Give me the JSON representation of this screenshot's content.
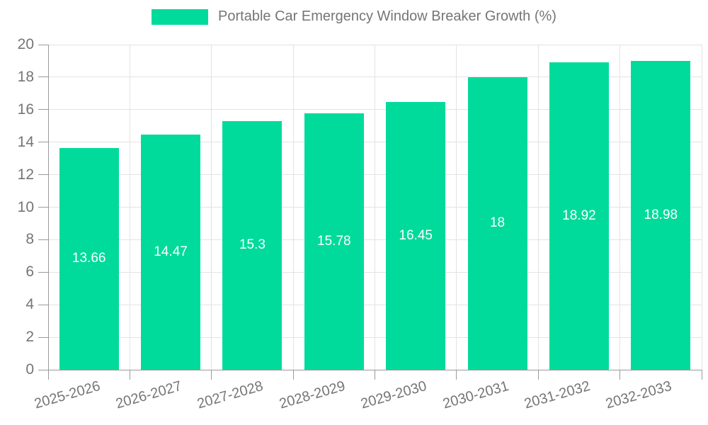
{
  "legend": {
    "label": "Portable Car Emergency Window Breaker Growth (%)"
  },
  "colors": {
    "bar": "#00DB9B",
    "grid": "#E3E3E3",
    "axis": "#9B9B9B",
    "text": "#757575",
    "value_label": "#FFFFFF",
    "background": "#FFFFFF"
  },
  "chart_data": {
    "type": "bar",
    "title": "Portable Car Emergency Window Breaker Growth (%)",
    "categories": [
      "2025-2026",
      "2026-2027",
      "2027-2028",
      "2028-2029",
      "2029-2030",
      "2030-2031",
      "2031-2032",
      "2032-2033"
    ],
    "values": [
      13.66,
      14.47,
      15.3,
      15.78,
      16.45,
      18,
      18.92,
      18.98
    ],
    "value_labels": [
      "13.66",
      "14.47",
      "15.3",
      "15.78",
      "16.45",
      "18",
      "18.92",
      "18.98"
    ],
    "xlabel": "",
    "ylabel": "",
    "ylim": [
      0,
      20
    ],
    "y_ticks": [
      0,
      2,
      4,
      6,
      8,
      10,
      12,
      14,
      16,
      18,
      20
    ],
    "grid": true,
    "legend_position": "top",
    "value_label_position": "center-of-bar",
    "x_label_rotation_deg": -16
  }
}
